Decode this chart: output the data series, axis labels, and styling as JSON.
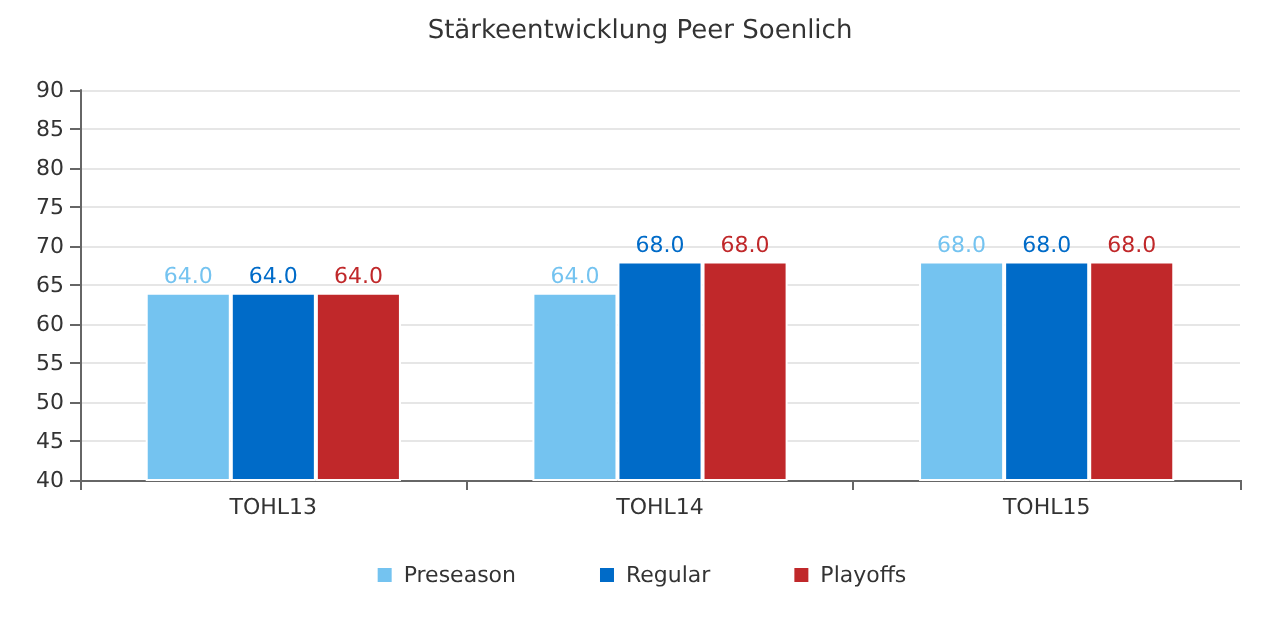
{
  "chart_data": {
    "type": "bar",
    "title": "Stärkeentwicklung Peer Soenlich",
    "categories": [
      "TOHL13",
      "TOHL14",
      "TOHL15"
    ],
    "series": [
      {
        "name": "Preseason",
        "color": "#74c3f0",
        "values": [
          64.0,
          64.0,
          68.0
        ],
        "value_labels": [
          "64.0",
          "64.0",
          "68.0"
        ]
      },
      {
        "name": "Regular",
        "color": "#006bc8",
        "values": [
          64.0,
          68.0,
          68.0
        ],
        "value_labels": [
          "64.0",
          "68.0",
          "68.0"
        ]
      },
      {
        "name": "Playoffs",
        "color": "#c0282a",
        "values": [
          64.0,
          68.0,
          68.0
        ],
        "value_labels": [
          "64.0",
          "68.0",
          "68.0"
        ]
      }
    ],
    "ylim": [
      40,
      90
    ],
    "yticks": [
      40,
      45,
      50,
      55,
      60,
      65,
      70,
      75,
      80,
      85,
      90
    ],
    "grid": "y",
    "legend": "bottom"
  }
}
